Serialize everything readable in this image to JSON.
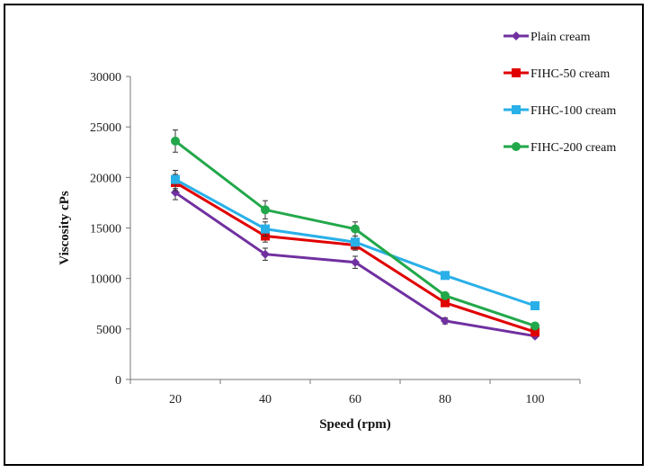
{
  "chart_data": {
    "type": "line",
    "title": "",
    "xlabel": "Speed (rpm)",
    "ylabel": "Viscosity cPs",
    "categories": [
      "20",
      "40",
      "60",
      "80",
      "100"
    ],
    "ylim": [
      0,
      30000
    ],
    "yticks": [
      0,
      5000,
      10000,
      15000,
      20000,
      25000,
      30000
    ],
    "legend_position": "top-right",
    "grid": false,
    "series": [
      {
        "name": "Plain cream",
        "color": "#7030a0",
        "marker": "diamond",
        "values": [
          18500,
          12400,
          11600,
          5800,
          4300
        ],
        "errors": [
          700,
          600,
          600,
          300,
          200
        ]
      },
      {
        "name": "FIHC-50 cream",
        "color": "#e00000",
        "marker": "square",
        "values": [
          19500,
          14200,
          13300,
          7600,
          4700
        ],
        "errors": [
          800,
          600,
          500,
          300,
          200
        ]
      },
      {
        "name": "FIHC-100 cream",
        "color": "#29b0e8",
        "marker": "square",
        "values": [
          19800,
          14900,
          13600,
          10300,
          7300
        ],
        "errors": [
          900,
          700,
          600,
          300,
          200
        ]
      },
      {
        "name": "FIHC-200 cream",
        "color": "#22a84a",
        "marker": "circle",
        "values": [
          23600,
          16800,
          14900,
          8300,
          5300
        ],
        "errors": [
          1100,
          900,
          700,
          300,
          200
        ]
      }
    ]
  }
}
